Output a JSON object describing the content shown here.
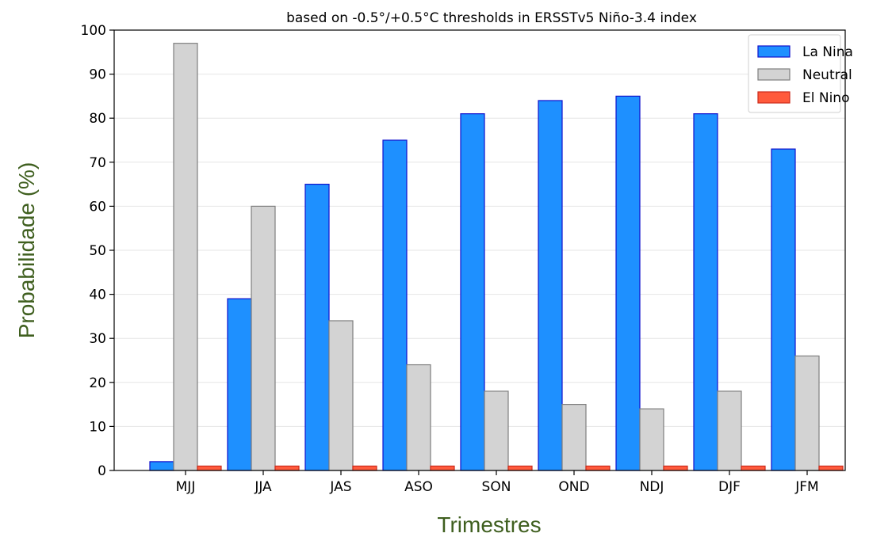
{
  "chart_data": {
    "type": "bar",
    "title": "based on -0.5°/+0.5°C thresholds in ERSSTv5 Niño-3.4 index",
    "xlabel": "Trimestres",
    "ylabel": "Probabilidade (%)",
    "categories": [
      "MJJ",
      "JJA",
      "JAS",
      "ASO",
      "SON",
      "OND",
      "NDJ",
      "DJF",
      "JFM"
    ],
    "series": [
      {
        "name": "La Nina",
        "color": "#1e90ff",
        "edge": "#1010cc",
        "values": [
          2,
          39,
          65,
          75,
          81,
          84,
          85,
          81,
          73
        ]
      },
      {
        "name": "Neutral",
        "color": "#d3d3d3",
        "edge": "#7f7f7f",
        "values": [
          97,
          60,
          34,
          24,
          18,
          15,
          14,
          18,
          26
        ]
      },
      {
        "name": "El Nino",
        "color": "#ff5a3c",
        "edge": "#cc2a1a",
        "values": [
          1,
          1,
          1,
          1,
          1,
          1,
          1,
          1,
          1
        ]
      }
    ],
    "ylim": [
      0,
      100
    ],
    "yticks": [
      0,
      10,
      20,
      30,
      40,
      50,
      60,
      70,
      80,
      90,
      100
    ],
    "grid": true,
    "legend_position": "top-right"
  }
}
